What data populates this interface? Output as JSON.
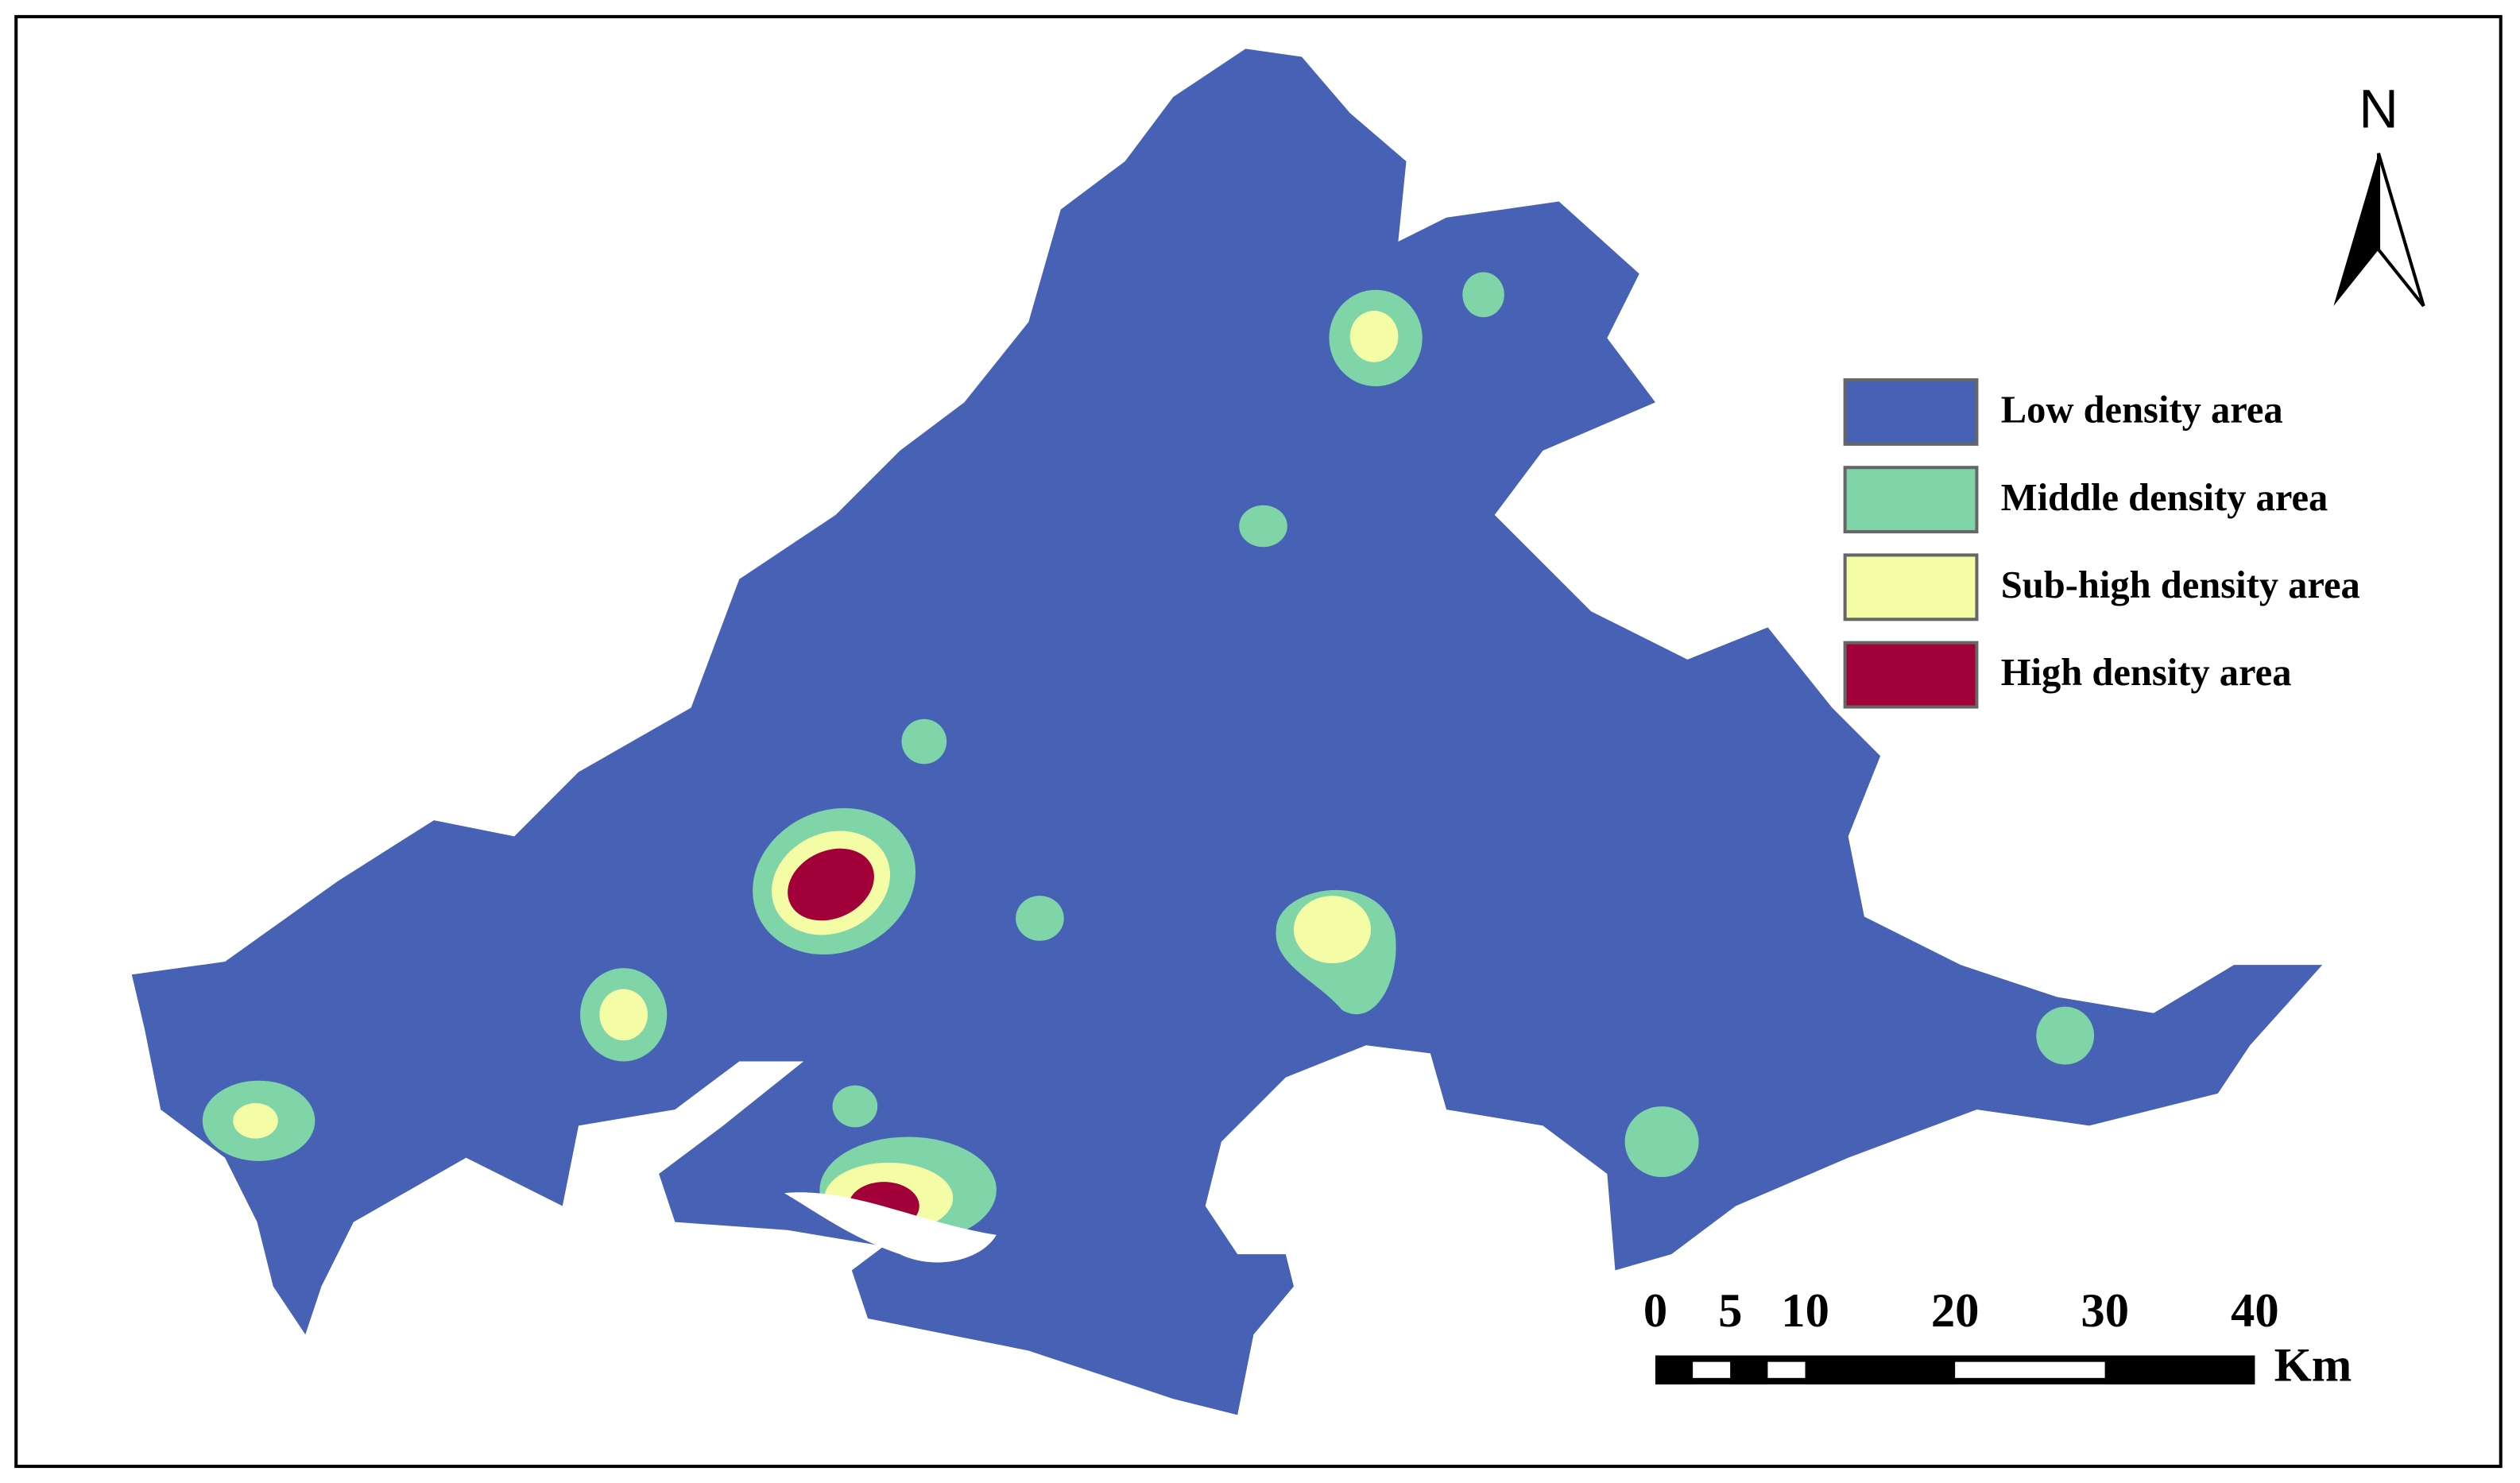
{
  "north_label": "N",
  "legend": [
    {
      "label": "Low density area",
      "color": "#4762b4"
    },
    {
      "label": "Middle density area",
      "color": "#7fd4a8"
    },
    {
      "label": "Sub-high density area",
      "color": "#f5fca6"
    },
    {
      "label": "High density area",
      "color": "#a10038"
    }
  ],
  "scale_bar": {
    "ticks": [
      0,
      5,
      10,
      20,
      30,
      40
    ],
    "unit": "Km"
  }
}
